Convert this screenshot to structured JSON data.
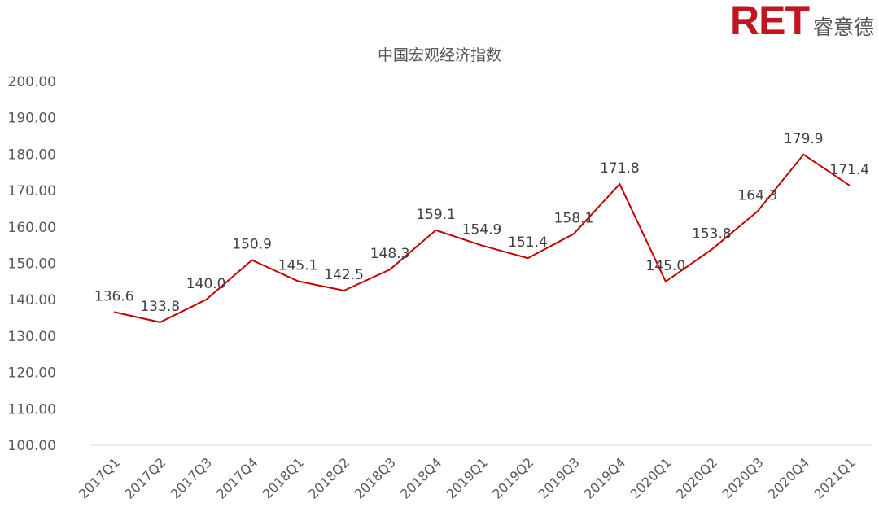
{
  "logo": {
    "brand": "RET",
    "name_cn": "睿意德"
  },
  "colors": {
    "brand_red": "#c0161f",
    "line": "#c00000",
    "axis": "#d9d9d9"
  },
  "chart_data": {
    "type": "line",
    "title": "中国宏观经济指数",
    "categories": [
      "2017Q1",
      "2017Q2",
      "2017Q3",
      "2017Q4",
      "2018Q1",
      "2018Q2",
      "2018Q3",
      "2018Q4",
      "2019Q1",
      "2019Q2",
      "2019Q3",
      "2019Q4",
      "2020Q1",
      "2020Q2",
      "2020Q3",
      "2020Q4",
      "2021Q1"
    ],
    "series": [
      {
        "values": [
          136.6,
          133.8,
          140.0,
          150.9,
          145.1,
          142.5,
          148.3,
          159.1,
          154.9,
          151.4,
          158.1,
          171.8,
          145.0,
          153.8,
          164.3,
          179.9,
          171.4
        ]
      }
    ],
    "data_labels": [
      "136.6",
      "133.8",
      "140.0",
      "150.9",
      "145.1",
      "142.5",
      "148.3",
      "159.1",
      "154.9",
      "151.4",
      "158.1",
      "171.8",
      "145.0",
      "153.8",
      "164.3",
      "179.9",
      "171.4"
    ],
    "yticks": [
      "100.00",
      "110.00",
      "120.00",
      "130.00",
      "140.00",
      "150.00",
      "160.00",
      "170.00",
      "180.00",
      "190.00",
      "200.00"
    ],
    "ylim": [
      100,
      200
    ],
    "xlabel": "",
    "ylabel": "",
    "grid": false,
    "legend": "none"
  }
}
